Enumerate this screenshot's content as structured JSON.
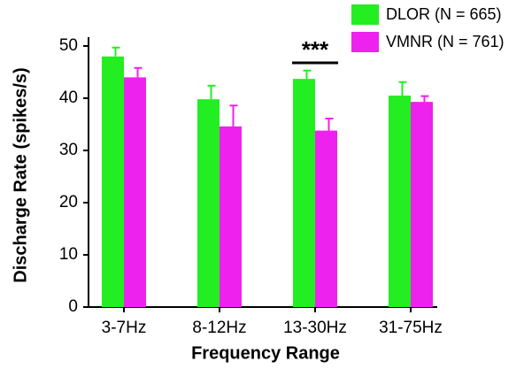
{
  "chart_data": {
    "type": "bar",
    "ylabel": "Discharge Rate (spikes/s)",
    "xlabel": "Frequency Range",
    "categories": [
      "3-7Hz",
      "8-12Hz",
      "13-30Hz",
      "31-75Hz"
    ],
    "series": [
      {
        "name": "DLOR (N = 665)",
        "color": "#22ee22",
        "values": [
          48,
          39.8,
          43.7,
          40.5
        ],
        "errors": [
          1.7,
          2.6,
          1.6,
          2.6
        ]
      },
      {
        "name": "VMNR (N = 761)",
        "color": "#ee22ee",
        "values": [
          44,
          34.6,
          33.8,
          39.3
        ],
        "errors": [
          1.8,
          4,
          2.3,
          1.1
        ]
      }
    ],
    "annotation": "***",
    "ylim": [
      0,
      50
    ],
    "yticks": [
      0,
      10,
      20,
      30,
      40,
      50
    ]
  }
}
